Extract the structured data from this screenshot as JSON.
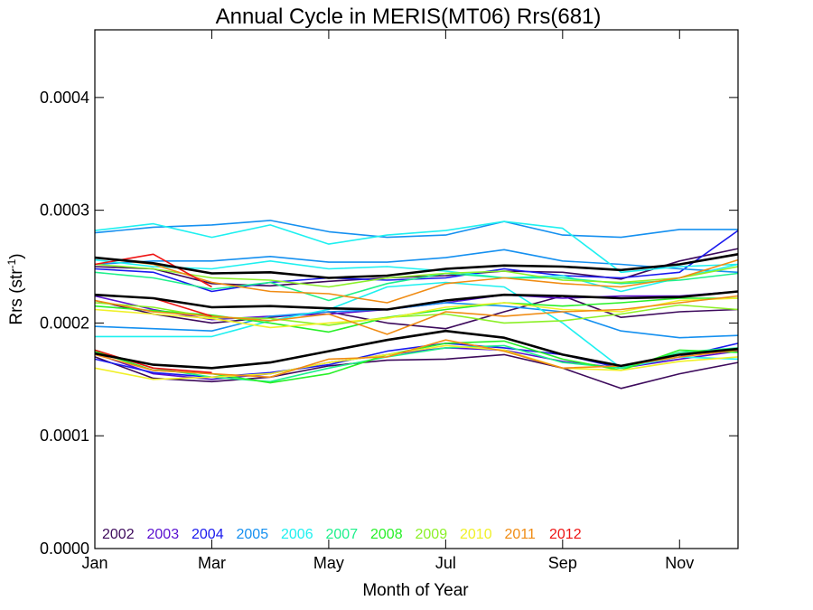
{
  "chart_data": {
    "type": "line",
    "title": "Annual Cycle in MERIS(MT06) Rrs(681)",
    "xlabel": "Month of Year",
    "ylabel": "Rrs (str",
    "ylabel_sup": "-1",
    "ylabel_end": ")",
    "xlim": [
      1,
      12
    ],
    "ylim": [
      0,
      0.00046
    ],
    "x_ticks": [
      {
        "value": 1,
        "label": "Jan"
      },
      {
        "value": 3,
        "label": "Mar"
      },
      {
        "value": 5,
        "label": "May"
      },
      {
        "value": 7,
        "label": "Jul"
      },
      {
        "value": 9,
        "label": "Sep"
      },
      {
        "value": 11,
        "label": "Nov"
      }
    ],
    "y_ticks": [
      {
        "value": 0,
        "label": "0.0000"
      },
      {
        "value": 0.0001,
        "label": "0.0001"
      },
      {
        "value": 0.0002,
        "label": "0.0002"
      },
      {
        "value": 0.0003,
        "label": "0.0003"
      },
      {
        "value": 0.0004,
        "label": "0.0004"
      }
    ],
    "x": [
      1,
      2,
      3,
      4,
      5,
      6,
      7,
      8,
      9,
      10,
      11,
      12
    ],
    "legend": {
      "placement": "bottom-left",
      "entries": [
        {
          "label": "2002",
          "color": "#3d0a5c"
        },
        {
          "label": "2003",
          "color": "#5a0fd0"
        },
        {
          "label": "2004",
          "color": "#1a1aee"
        },
        {
          "label": "2005",
          "color": "#1590f0"
        },
        {
          "label": "2006",
          "color": "#1ef0f0"
        },
        {
          "label": "2007",
          "color": "#1ef08c"
        },
        {
          "label": "2008",
          "color": "#28f028"
        },
        {
          "label": "2009",
          "color": "#8cf028"
        },
        {
          "label": "2010",
          "color": "#f0f028"
        },
        {
          "label": "2011",
          "color": "#f08c14"
        },
        {
          "label": "2012",
          "color": "#ee1414"
        }
      ]
    },
    "series": [
      {
        "color": "#3d0a5c",
        "values": [
          0.00017,
          0.000151,
          0.000148,
          0.000152,
          0.000162,
          0.000167,
          0.000168,
          0.000172,
          0.00016,
          0.000142,
          0.000155,
          0.000165
        ]
      },
      {
        "color": "#3d0a5c",
        "values": [
          0.00022,
          0.000208,
          0.0002,
          0.000205,
          0.00021,
          0.0002,
          0.000195,
          0.00021,
          0.000224,
          0.000205,
          0.00021,
          0.000212
        ]
      },
      {
        "color": "#3d0a5c",
        "values": [
          0.00025,
          0.000248,
          0.000235,
          0.000233,
          0.000237,
          0.00024,
          0.000242,
          0.000246,
          0.000245,
          0.000239,
          0.000255,
          0.000266
        ]
      },
      {
        "color": "#5a0fd0",
        "values": [
          0.000173,
          0.000155,
          0.00015,
          0.000155,
          0.000165,
          0.000172,
          0.000178,
          0.000176,
          0.000166,
          0.00016,
          0.000168,
          0.000175
        ]
      },
      {
        "color": "#5a0fd0",
        "values": [
          0.000224,
          0.000212,
          0.000203,
          0.000206,
          0.000208,
          0.000212,
          0.000218,
          0.000225,
          0.000222,
          0.000224,
          0.000224,
          0.000228
        ]
      },
      {
        "color": "#1a1aee",
        "values": [
          0.000168,
          0.000156,
          0.000152,
          0.000156,
          0.000163,
          0.000175,
          0.000182,
          0.000178,
          0.000172,
          0.00016,
          0.00017,
          0.000182
        ]
      },
      {
        "color": "#1a1aee",
        "values": [
          0.000248,
          0.000245,
          0.000228,
          0.000236,
          0.00024,
          0.000238,
          0.00024,
          0.000248,
          0.000242,
          0.00024,
          0.000245,
          0.000282
        ]
      },
      {
        "color": "#1590f0",
        "values": [
          0.00028,
          0.000285,
          0.000287,
          0.000291,
          0.000281,
          0.000276,
          0.000278,
          0.00029,
          0.000278,
          0.000276,
          0.000283,
          0.000283
        ]
      },
      {
        "color": "#1590f0",
        "values": [
          0.000252,
          0.000255,
          0.000255,
          0.000259,
          0.000254,
          0.000254,
          0.000258,
          0.000265,
          0.000255,
          0.000252,
          0.000248,
          0.000245
        ]
      },
      {
        "color": "#1590f0",
        "values": [
          0.000197,
          0.000195,
          0.000193,
          0.000206,
          0.00021,
          0.000212,
          0.000218,
          0.000215,
          0.00021,
          0.000193,
          0.000187,
          0.000189
        ]
      },
      {
        "color": "#1ef0f0",
        "values": [
          0.000282,
          0.000288,
          0.000276,
          0.000287,
          0.00027,
          0.000278,
          0.000282,
          0.00029,
          0.000284,
          0.000245,
          0.00025,
          0.000252
        ]
      },
      {
        "color": "#1ef0f0",
        "values": [
          0.000256,
          0.00025,
          0.000248,
          0.000255,
          0.000248,
          0.00025,
          0.000246,
          0.00024,
          0.000242,
          0.000228,
          0.00024,
          0.000252
        ]
      },
      {
        "color": "#1ef0f0",
        "values": [
          0.000188,
          0.000188,
          0.000188,
          0.000202,
          0.000212,
          0.000232,
          0.000236,
          0.000232,
          0.0002,
          0.00016,
          0.00017,
          0.000168
        ]
      },
      {
        "color": "#1ef08c",
        "values": [
          0.000176,
          0.00016,
          0.000152,
          0.000148,
          0.00016,
          0.00017,
          0.000178,
          0.00018,
          0.000165,
          0.00016,
          0.000174,
          0.000178
        ]
      },
      {
        "color": "#1ef08c",
        "values": [
          0.000245,
          0.00024,
          0.00023,
          0.000236,
          0.00022,
          0.000235,
          0.000244,
          0.00024,
          0.00024,
          0.000235,
          0.000238,
          0.000244
        ]
      },
      {
        "color": "#28f028",
        "values": [
          0.000175,
          0.000158,
          0.000155,
          0.000147,
          0.000155,
          0.000172,
          0.000182,
          0.000184,
          0.000168,
          0.000158,
          0.000176,
          0.000174
        ]
      },
      {
        "color": "#28f028",
        "values": [
          0.000215,
          0.000211,
          0.000207,
          0.0002,
          0.000192,
          0.000205,
          0.000212,
          0.000218,
          0.000215,
          0.000218,
          0.000222,
          0.000222
        ]
      },
      {
        "color": "#8cf028",
        "values": [
          0.000218,
          0.000214,
          0.000205,
          0.000204,
          0.000198,
          0.000205,
          0.000208,
          0.0002,
          0.000202,
          0.000208,
          0.000216,
          0.000212
        ]
      },
      {
        "color": "#8cf028",
        "values": [
          0.000252,
          0.000248,
          0.00024,
          0.000238,
          0.000232,
          0.00024,
          0.000244,
          0.000246,
          0.000238,
          0.000236,
          0.00024,
          0.00025
        ]
      },
      {
        "color": "#f0f028",
        "values": [
          0.00016,
          0.00015,
          0.000152,
          0.000155,
          0.000165,
          0.000172,
          0.00018,
          0.000176,
          0.00016,
          0.000158,
          0.000166,
          0.00017
        ]
      },
      {
        "color": "#f0f028",
        "values": [
          0.000212,
          0.000208,
          0.000204,
          0.000196,
          0.0002,
          0.000204,
          0.000214,
          0.000218,
          0.000212,
          0.00021,
          0.00022,
          0.000222
        ]
      },
      {
        "color": "#f08c14",
        "values": [
          0.000172,
          0.000158,
          0.000155,
          0.000152,
          0.000168,
          0.00017,
          0.000185,
          0.000175,
          0.00016,
          0.000162,
          0.00017,
          0.000176
        ]
      },
      {
        "color": "#f08c14",
        "values": [
          0.000258,
          0.000252,
          0.000236,
          0.000228,
          0.000226,
          0.000218,
          0.000235,
          0.00024,
          0.000235,
          0.000232,
          0.00024,
          0.000256
        ]
      },
      {
        "color": "#f08c14",
        "values": [
          0.00022,
          0.00021,
          0.000206,
          0.000202,
          0.000208,
          0.00019,
          0.00021,
          0.000206,
          0.00021,
          0.000212,
          0.000218,
          0.000224
        ]
      },
      {
        "color": "#ee1414",
        "values": [
          0.000252,
          0.000261,
          0.000232,
          null,
          null,
          null,
          null,
          null,
          null,
          null,
          null,
          null
        ]
      },
      {
        "color": "#ee1414",
        "values": [
          0.000225,
          0.000222,
          0.000206,
          null,
          null,
          null,
          null,
          null,
          null,
          null,
          null,
          null
        ]
      },
      {
        "color": "#ee1414",
        "values": [
          0.000176,
          0.00016,
          0.000156,
          null,
          null,
          null,
          null,
          null,
          null,
          null,
          null,
          null
        ]
      },
      {
        "color": "#000000",
        "width": 2.6,
        "values": [
          0.000258,
          0.000253,
          0.000244,
          0.000245,
          0.00024,
          0.000242,
          0.000248,
          0.000251,
          0.00025,
          0.000247,
          0.000252,
          0.000261
        ]
      },
      {
        "color": "#000000",
        "width": 2.6,
        "values": [
          0.000225,
          0.000222,
          0.000214,
          0.000215,
          0.000213,
          0.000212,
          0.00022,
          0.000225,
          0.000224,
          0.000222,
          0.000223,
          0.000228
        ]
      },
      {
        "color": "#000000",
        "width": 2.6,
        "values": [
          0.000173,
          0.000163,
          0.00016,
          0.000165,
          0.000175,
          0.000185,
          0.000193,
          0.000187,
          0.000172,
          0.000162,
          0.000172,
          0.000177
        ]
      }
    ]
  }
}
